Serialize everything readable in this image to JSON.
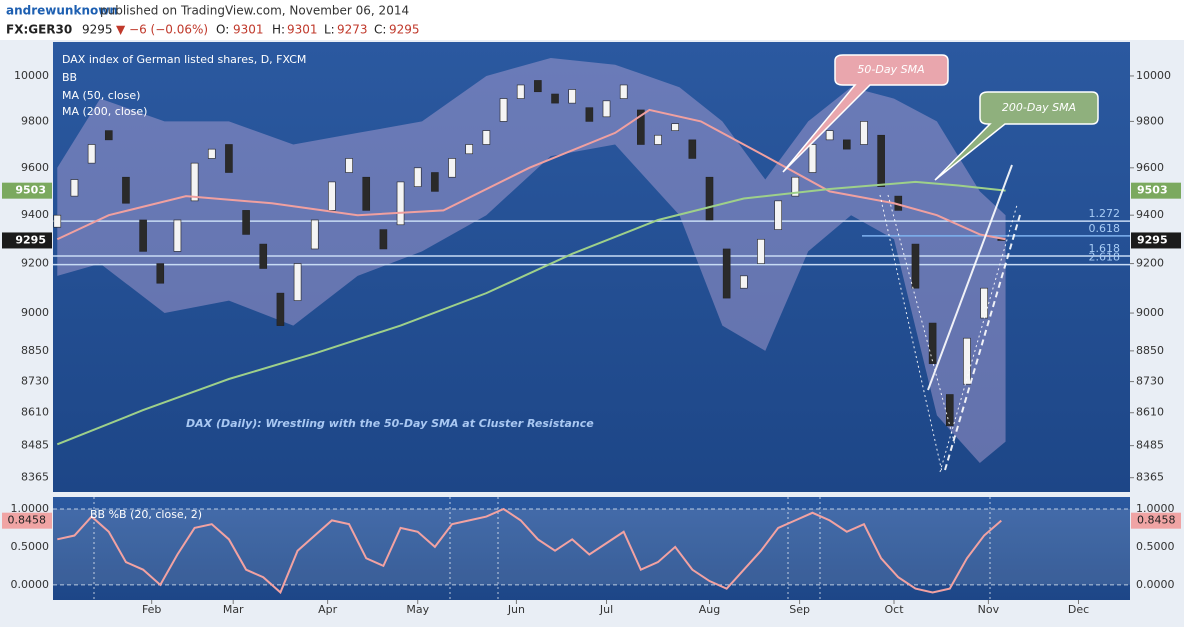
{
  "header": {
    "author": "andrewunknown",
    "published": "published on TradingView.com, November 06, 2014",
    "symbol": "FX:GER30",
    "price": 9295,
    "change": "▼ −6 (−0.06%)",
    "open_label": "O:",
    "open": 9301,
    "high_label": "H:",
    "high": 9301,
    "low_label": "L:",
    "low": 9273,
    "close_label": "C:",
    "close": 9295
  },
  "chart_data": [
    {
      "type": "candlestick",
      "subtitle": "DAX index of German listed shares, D, FXCM",
      "title": "DAX (Daily): Wrestling with the 50-Day SMA at Cluster Resistance",
      "annotations": [
        "50-Day SMA",
        "200-Day SMA"
      ],
      "log_scale": true,
      "x": [
        0,
        4,
        8,
        12,
        16,
        20,
        24,
        28,
        32,
        36,
        40,
        44,
        48,
        52,
        56,
        60,
        64,
        68,
        72,
        76,
        80,
        84,
        88,
        92,
        96,
        100,
        104,
        108,
        112,
        116,
        120,
        124,
        128,
        132,
        136,
        140,
        144,
        148,
        152,
        156,
        160,
        164,
        168,
        172,
        176,
        180,
        184,
        188,
        192,
        196,
        200,
        204,
        208,
        212,
        216,
        220
      ],
      "open": [
        9350,
        9480,
        9620,
        9760,
        9560,
        9380,
        9200,
        9250,
        9460,
        9640,
        9700,
        9420,
        9280,
        9080,
        9050,
        9260,
        9420,
        9580,
        9560,
        9340,
        9360,
        9520,
        9580,
        9560,
        9660,
        9700,
        9800,
        9900,
        9980,
        9920,
        9880,
        9860,
        9820,
        9900,
        9850,
        9700,
        9760,
        9720,
        9560,
        9260,
        9100,
        9200,
        9340,
        9480,
        9580,
        9720,
        9720,
        9700,
        9740,
        9480,
        9280,
        8960,
        8680,
        8720,
        8980,
        9301
      ],
      "close": [
        9400,
        9550,
        9700,
        9720,
        9450,
        9250,
        9120,
        9380,
        9620,
        9680,
        9580,
        9320,
        9180,
        8950,
        9200,
        9380,
        9540,
        9640,
        9420,
        9260,
        9540,
        9600,
        9500,
        9640,
        9700,
        9760,
        9900,
        9960,
        9930,
        9880,
        9940,
        9800,
        9890,
        9960,
        9700,
        9740,
        9790,
        9640,
        9380,
        9060,
        9150,
        9300,
        9460,
        9560,
        9700,
        9760,
        9680,
        9800,
        9520,
        9420,
        9100,
        8800,
        8560,
        8900,
        9100,
        9295
      ],
      "series": [
        {
          "name": "MA (50, close)",
          "color": "#f0a0a0",
          "x": [
            0,
            12,
            30,
            50,
            70,
            90,
            110,
            130,
            138,
            150,
            165,
            180,
            195,
            205,
            215,
            221
          ],
          "values": [
            9300,
            9400,
            9480,
            9450,
            9400,
            9420,
            9600,
            9750,
            9850,
            9800,
            9650,
            9500,
            9450,
            9400,
            9320,
            9300
          ]
        },
        {
          "name": "MA (200, close)",
          "color": "#9ed08a",
          "x": [
            0,
            20,
            40,
            60,
            80,
            100,
            120,
            140,
            160,
            180,
            200,
            210,
            221
          ],
          "values": [
            8490,
            8620,
            8740,
            8840,
            8950,
            9080,
            9240,
            9380,
            9470,
            9510,
            9540,
            9525,
            9503
          ]
        }
      ],
      "bands": {
        "name": "BB",
        "color": "#b9a6d6",
        "x": [
          0,
          10,
          25,
          40,
          55,
          70,
          85,
          100,
          115,
          130,
          145,
          155,
          165,
          175,
          185,
          195,
          205,
          215,
          221
        ],
        "upper": [
          9600,
          9900,
          9800,
          9800,
          9700,
          9750,
          9800,
          10000,
          10080,
          10050,
          9950,
          9800,
          9550,
          9800,
          9950,
          9900,
          9800,
          9500,
          9400
        ],
        "lower": [
          9150,
          9200,
          9000,
          9050,
          8950,
          9150,
          9250,
          9400,
          9650,
          9700,
          9400,
          8950,
          8850,
          9250,
          9400,
          9300,
          8600,
          8420,
          8500
        ]
      },
      "fib_levels": [
        {
          "label": "1.272",
          "value": 9375
        },
        {
          "label": "0.618",
          "value": 9314
        },
        {
          "label": "1.618",
          "value": 9231
        },
        {
          "label": "2.618",
          "value": 9196
        }
      ],
      "last_price": 9295,
      "sma200_last": 9503,
      "ylim": [
        8312,
        10152
      ],
      "yticks": [
        8365,
        8485,
        8610,
        8730,
        8850,
        9000,
        9200,
        9400,
        9600,
        9800,
        10000
      ],
      "xlim": [
        -1,
        250
      ],
      "xticks": [
        {
          "value": 22,
          "label": "Feb"
        },
        {
          "value": 41,
          "label": "Mar"
        },
        {
          "value": 63,
          "label": "Apr"
        },
        {
          "value": 84,
          "label": "May"
        },
        {
          "value": 107,
          "label": "Jun"
        },
        {
          "value": 128,
          "label": "Jul"
        },
        {
          "value": 152,
          "label": "Aug"
        },
        {
          "value": 173,
          "label": "Sep"
        },
        {
          "value": 195,
          "label": "Oct"
        },
        {
          "value": 217,
          "label": "Nov"
        },
        {
          "value": 238,
          "label": "Dec"
        }
      ]
    },
    {
      "type": "line",
      "title": "BB %B (20, close, 2)",
      "color": "#f2a2a2",
      "x": [
        0,
        4,
        8,
        12,
        16,
        20,
        24,
        28,
        32,
        36,
        40,
        44,
        48,
        52,
        56,
        60,
        64,
        68,
        72,
        76,
        80,
        84,
        88,
        92,
        96,
        100,
        104,
        108,
        112,
        116,
        120,
        124,
        128,
        132,
        136,
        140,
        144,
        148,
        152,
        156,
        160,
        164,
        168,
        172,
        176,
        180,
        184,
        188,
        192,
        196,
        200,
        204,
        208,
        212,
        216,
        220
      ],
      "values": [
        0.6,
        0.65,
        0.9,
        0.7,
        0.3,
        0.2,
        0.0,
        0.4,
        0.75,
        0.8,
        0.6,
        0.2,
        0.1,
        -0.1,
        0.45,
        0.65,
        0.85,
        0.8,
        0.35,
        0.25,
        0.75,
        0.7,
        0.5,
        0.8,
        0.85,
        0.9,
        1.0,
        0.85,
        0.6,
        0.45,
        0.6,
        0.4,
        0.55,
        0.7,
        0.2,
        0.3,
        0.5,
        0.2,
        0.05,
        -0.05,
        0.2,
        0.45,
        0.75,
        0.85,
        0.95,
        0.85,
        0.7,
        0.8,
        0.35,
        0.1,
        -0.05,
        -0.1,
        -0.05,
        0.35,
        0.65,
        0.8458
      ],
      "last_value": 0.8458,
      "ylim": [
        -0.2,
        1.158
      ],
      "yticks": [
        {
          "value": 0,
          "label": "0.0000"
        },
        {
          "value": 0.5,
          "label": "0.5000"
        },
        {
          "value": 1,
          "label": "1.0000"
        }
      ],
      "xlim": [
        -1,
        250
      ]
    }
  ]
}
